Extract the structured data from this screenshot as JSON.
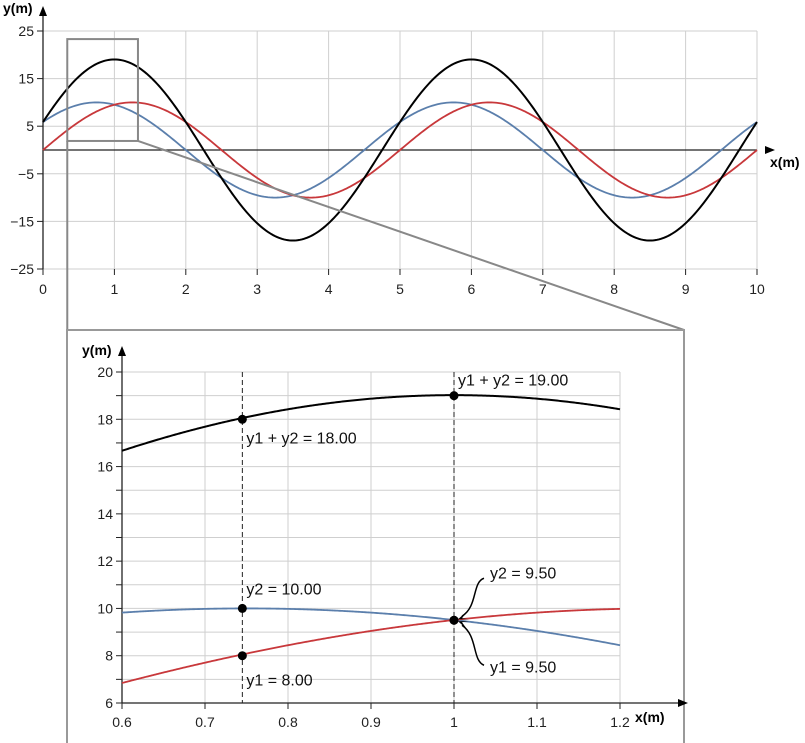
{
  "chart_data": [
    {
      "type": "line",
      "xlabel": "x(m)",
      "ylabel": "y(m)",
      "xlim": [
        0,
        10
      ],
      "ylim": [
        -25,
        25
      ],
      "xticks": [
        "0",
        "1",
        "2",
        "3",
        "4",
        "5",
        "6",
        "7",
        "8",
        "9",
        "10"
      ],
      "yticks": [
        "25",
        "15",
        "5",
        "−5",
        "−15",
        "−25"
      ],
      "grid": true,
      "series": [
        {
          "id": "y1",
          "color": "#c8383b",
          "amplitude": 10,
          "wavelength": 5,
          "phase": 0
        },
        {
          "id": "y2",
          "color": "#5b7fac",
          "amplitude": 10,
          "wavelength": 5,
          "phase": 0.6283
        },
        {
          "id": "y1+y2",
          "color": "#000000"
        }
      ],
      "zoom_region": {
        "x": [
          0.34,
          1.33
        ],
        "y": [
          1.9,
          23.3
        ]
      }
    },
    {
      "type": "line",
      "xlabel": "x(m)",
      "ylabel": "y(m)",
      "xlim": [
        0.6,
        1.2
      ],
      "ylim": [
        6,
        20
      ],
      "xticks": [
        "0.6",
        "0.7",
        "0.8",
        "0.9",
        "1",
        "1.1",
        "1.2"
      ],
      "yticks": [
        "6",
        "8",
        "10",
        "12",
        "14",
        "16",
        "18",
        "20"
      ],
      "grid": true,
      "dashed_x": [
        0.745,
        1.0
      ],
      "points": [
        {
          "x": 0.745,
          "y": 18.0,
          "label": "y1 + y2 = 18.00"
        },
        {
          "x": 1.0,
          "y": 19.0,
          "label": "y1 + y2 = 19.00"
        },
        {
          "x": 0.745,
          "y": 10.0,
          "label": "y2 = 10.00"
        },
        {
          "x": 0.745,
          "y": 8.0,
          "label": "y1 = 8.00"
        },
        {
          "x": 1.0,
          "y": 9.5,
          "label": "y2 = 9.50"
        },
        {
          "x": 1.0,
          "y": 9.5,
          "label": "y1 = 9.50"
        }
      ]
    }
  ]
}
